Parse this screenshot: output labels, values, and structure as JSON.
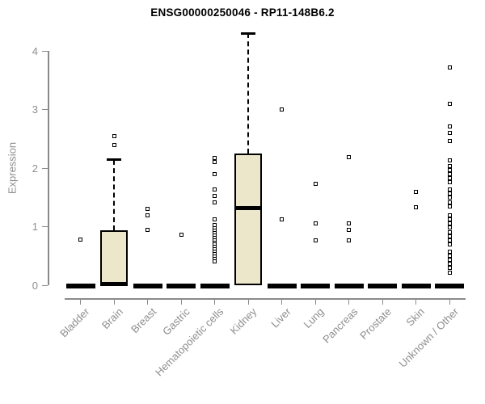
{
  "header": {
    "title": "ENSG00000250046 - RP11-148B6.2"
  },
  "chart_data": {
    "type": "boxplot",
    "title": "ENSG00000250046 - RP11-148B6.2",
    "xlabel": "",
    "ylabel": "Expression",
    "ylim": [
      0,
      4.35
    ],
    "y_ticks": [
      0,
      1,
      2,
      3,
      4
    ],
    "grid": false,
    "legend": "none",
    "colors": {
      "box_fill": "#ECE7CA",
      "box_border": "#000000",
      "axis": "#8A8A8A",
      "axis_text": "#8E8E8E",
      "title_text": "#000000",
      "background": "#FFFFFF"
    },
    "categories": [
      "Bladder",
      "Brain",
      "Breast",
      "Gastric",
      "Hematopoietic cells",
      "Kidney",
      "Liver",
      "Lung",
      "Pancreas",
      "Prostate",
      "Skin",
      "Unknown / Other"
    ],
    "series": [
      {
        "name": "Bladder",
        "q1": 0,
        "median": 0,
        "q3": 0,
        "whisker_low": 0,
        "whisker_high": 0,
        "outliers": [
          0.78
        ]
      },
      {
        "name": "Brain",
        "q1": 0,
        "median": 0.02,
        "q3": 0.94,
        "whisker_low": 0,
        "whisker_high": 2.14,
        "outliers": [
          2.55,
          2.39
        ]
      },
      {
        "name": "Breast",
        "q1": 0,
        "median": 0,
        "q3": 0,
        "whisker_low": 0,
        "whisker_high": 0,
        "outliers": [
          1.3,
          1.19,
          0.95
        ]
      },
      {
        "name": "Gastric",
        "q1": 0,
        "median": 0,
        "q3": 0,
        "whisker_low": 0,
        "whisker_high": 0,
        "outliers": [
          0.86
        ]
      },
      {
        "name": "Hematopoietic cells",
        "q1": 0,
        "median": 0,
        "q3": 0,
        "whisker_low": 0,
        "whisker_high": 0,
        "outliers": [
          2.17,
          2.1,
          1.89,
          1.63,
          1.52,
          1.41,
          1.12,
          1.03,
          0.97,
          0.93,
          0.89,
          0.85,
          0.81,
          0.77,
          0.73,
          0.69,
          0.65,
          0.61,
          0.57,
          0.53,
          0.49,
          0.45,
          0.41
        ]
      },
      {
        "name": "Kidney",
        "q1": 0,
        "median": 1.32,
        "q3": 2.25,
        "whisker_low": 0,
        "whisker_high": 4.3,
        "outliers": []
      },
      {
        "name": "Liver",
        "q1": 0,
        "median": 0,
        "q3": 0,
        "whisker_low": 0,
        "whisker_high": 0,
        "outliers": [
          3.0,
          1.12
        ]
      },
      {
        "name": "Lung",
        "q1": 0,
        "median": 0,
        "q3": 0,
        "whisker_low": 0,
        "whisker_high": 0,
        "outliers": [
          1.73,
          1.06,
          0.77
        ]
      },
      {
        "name": "Pancreas",
        "q1": 0,
        "median": 0,
        "q3": 0,
        "whisker_low": 0,
        "whisker_high": 0,
        "outliers": [
          2.18,
          1.05,
          0.95,
          0.76
        ]
      },
      {
        "name": "Prostate",
        "q1": 0,
        "median": 0,
        "q3": 0,
        "whisker_low": 0,
        "whisker_high": 0,
        "outliers": []
      },
      {
        "name": "Skin",
        "q1": 0,
        "median": 0,
        "q3": 0,
        "whisker_low": 0,
        "whisker_high": 0,
        "outliers": [
          1.6,
          1.33
        ]
      },
      {
        "name": "Unknown / Other",
        "q1": 0,
        "median": 0,
        "q3": 0,
        "whisker_low": 0,
        "whisker_high": 0,
        "outliers": [
          3.72,
          3.1,
          2.71,
          2.6,
          2.46,
          2.13,
          2.04,
          1.97,
          1.9,
          1.83,
          1.76,
          1.63,
          1.56,
          1.49,
          1.42,
          1.35,
          1.19,
          1.12,
          1.05,
          0.98,
          0.91,
          0.84,
          0.76,
          0.69,
          0.57,
          0.5,
          0.43,
          0.36,
          0.29,
          0.22
        ]
      }
    ]
  }
}
